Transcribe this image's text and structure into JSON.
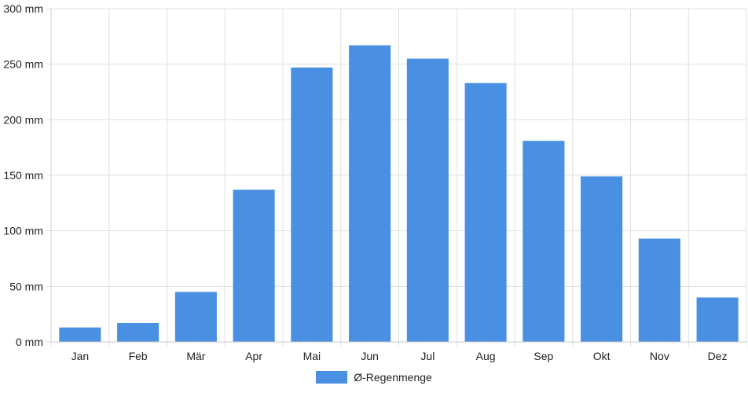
{
  "chart_data": {
    "type": "bar",
    "categories": [
      "Jan",
      "Feb",
      "Mär",
      "Apr",
      "Mai",
      "Jun",
      "Jul",
      "Aug",
      "Sep",
      "Okt",
      "Nov",
      "Dez"
    ],
    "series": [
      {
        "name": "Ø-Regenmenge",
        "values": [
          13,
          17,
          45,
          137,
          247,
          267,
          255,
          233,
          181,
          149,
          93,
          40
        ],
        "color": "#4a90e2"
      }
    ],
    "y_unit": "mm",
    "ylim": [
      0,
      300
    ],
    "y_ticks": [
      0,
      50,
      100,
      150,
      200,
      250,
      300
    ],
    "y_tick_labels": [
      "0 mm",
      "50 mm",
      "100 mm",
      "150 mm",
      "200 mm",
      "250 mm",
      "300 mm"
    ],
    "grid": true,
    "legend_position": "bottom"
  },
  "colors": {
    "bar": "#4a90e2",
    "grid": "#e0e0e0",
    "axis": "#cccccc"
  }
}
